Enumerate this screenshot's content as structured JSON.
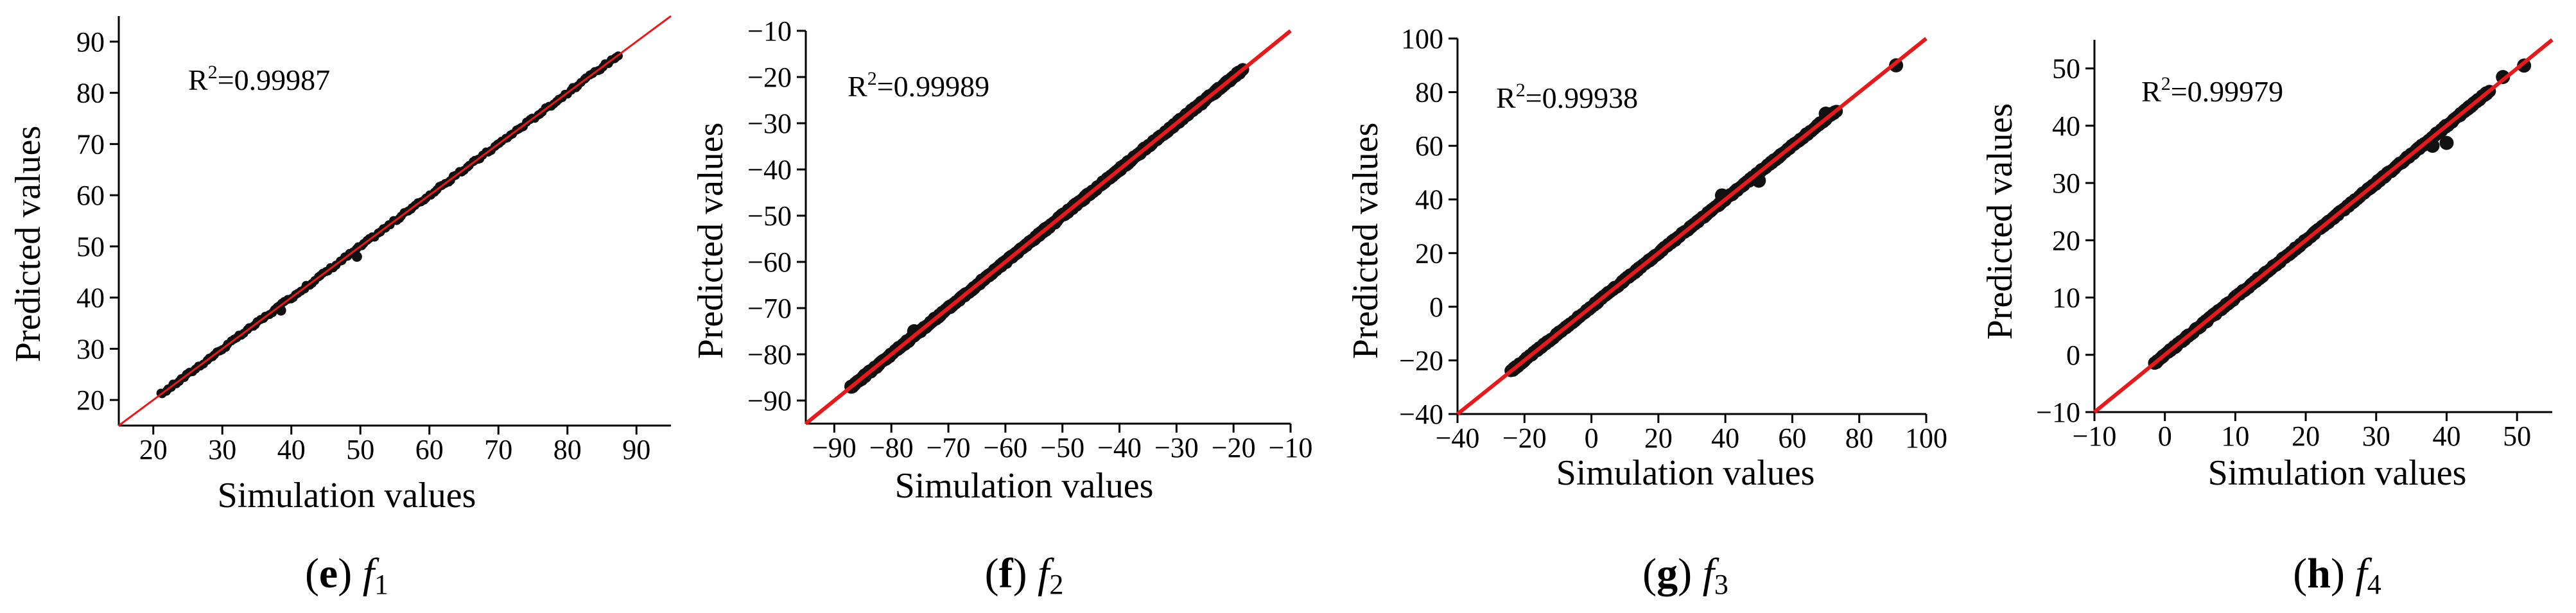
{
  "chart_data": [
    {
      "type": "scatter",
      "xlabel": "Simulation values",
      "ylabel": "Predicted values",
      "xlim": [
        15,
        95
      ],
      "ylim": [
        15,
        95
      ],
      "xticks": [
        20,
        30,
        40,
        50,
        60,
        70,
        80,
        90
      ],
      "yticks": [
        20,
        30,
        40,
        50,
        60,
        70,
        80,
        90
      ],
      "r2_label": "R",
      "r2_sup": "2",
      "r2_value": "=0.99987",
      "caption_letter": "e",
      "caption_fn": "f",
      "caption_sub": "1",
      "fit_line": {
        "from": [
          15,
          15
        ],
        "to": [
          95,
          95
        ],
        "color": "#e41a1c"
      },
      "points": {
        "min": 21,
        "max": 87.5,
        "count": 170
      },
      "outliers": [
        [
          38.5,
          37.5
        ],
        [
          49.5,
          48
        ]
      ]
    },
    {
      "type": "scatter",
      "xlabel": "Simulation values",
      "ylabel": "Predicted values",
      "xlim": [
        -95,
        -10
      ],
      "ylim": [
        -95,
        -10
      ],
      "xticks": [
        -90,
        -80,
        -70,
        -60,
        -50,
        -40,
        -30,
        -20,
        -10
      ],
      "yticks": [
        -90,
        -80,
        -70,
        -60,
        -50,
        -40,
        -30,
        -20,
        -10
      ],
      "r2_label": "R",
      "r2_sup": "2",
      "r2_value": "=0.99989",
      "caption_letter": "f",
      "caption_fn": "f",
      "caption_sub": "2",
      "fit_line": {
        "from": [
          -95,
          -95
        ],
        "to": [
          -10,
          -10
        ],
        "color": "#e41a1c"
      },
      "points": {
        "min": -87,
        "max": -18.5,
        "count": 420
      },
      "outliers": [
        [
          -87,
          -87
        ],
        [
          -76,
          -75
        ]
      ]
    },
    {
      "type": "scatter",
      "xlabel": "Simulation values",
      "ylabel": "Predicted values",
      "xlim": [
        -40,
        100
      ],
      "ylim": [
        -40,
        100
      ],
      "xticks": [
        -40,
        -20,
        0,
        20,
        40,
        60,
        80,
        100
      ],
      "yticks": [
        -40,
        -20,
        0,
        20,
        40,
        60,
        80,
        100
      ],
      "r2_label": "R",
      "r2_sup": "2",
      "r2_value": "=0.99938",
      "caption_letter": "g",
      "caption_fn": "f",
      "caption_sub": "3",
      "fit_line": {
        "from": [
          -40,
          -40
        ],
        "to": [
          100,
          100
        ],
        "color": "#e41a1c"
      },
      "points": {
        "min": -24,
        "max": 73,
        "count": 320
      },
      "outliers": [
        [
          91,
          90
        ],
        [
          50,
          47
        ],
        [
          39,
          41.5
        ],
        [
          70,
          72
        ]
      ]
    },
    {
      "type": "scatter",
      "xlabel": "Simulation values",
      "ylabel": "Predicted values",
      "xlim": [
        -10,
        55
      ],
      "ylim": [
        -10,
        55
      ],
      "xticks": [
        -10,
        0,
        10,
        20,
        30,
        40,
        50
      ],
      "yticks": [
        -10,
        0,
        10,
        20,
        30,
        40,
        50
      ],
      "r2_label": "R",
      "r2_sup": "2",
      "r2_value": "=0.99979",
      "caption_letter": "h",
      "caption_fn": "f",
      "caption_sub": "4",
      "fit_line": {
        "from": [
          -10,
          -10
        ],
        "to": [
          55,
          55
        ],
        "color": "#e41a1c"
      },
      "points": {
        "min": -1.5,
        "max": 46,
        "count": 380
      },
      "outliers": [
        [
          51,
          50.5
        ],
        [
          38,
          36.5
        ],
        [
          40,
          37
        ],
        [
          48,
          48.5
        ]
      ]
    }
  ]
}
